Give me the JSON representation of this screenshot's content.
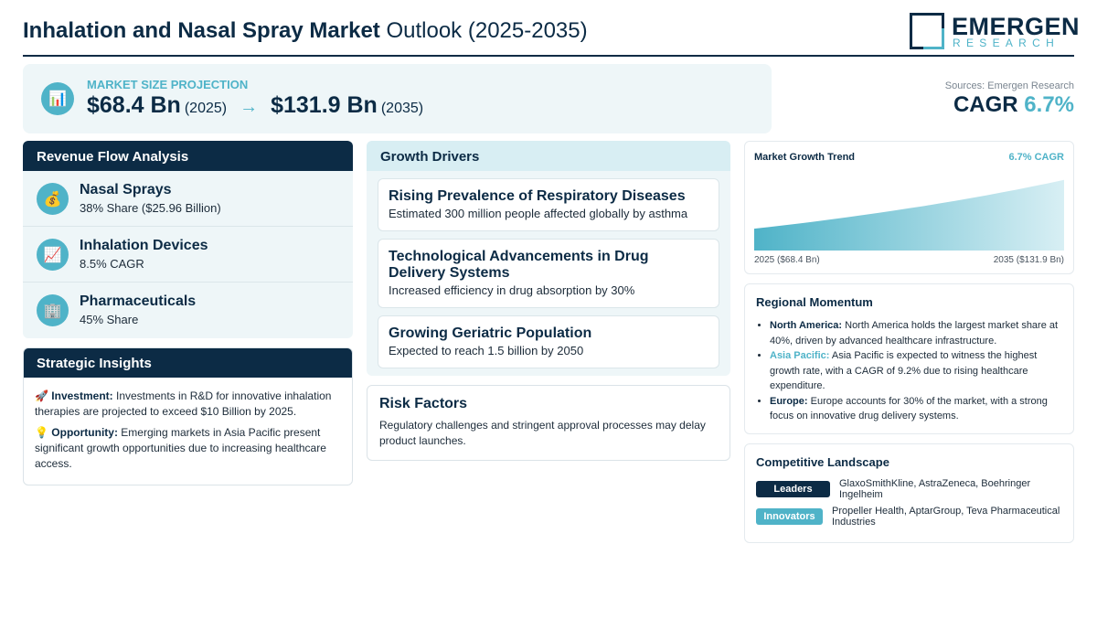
{
  "header": {
    "title_bold": "Inhalation and Nasal Spray Market",
    "title_rest": "Outlook (2025-2035)",
    "logo_main": "EMERGEN",
    "logo_sub": "RESEARCH"
  },
  "projection": {
    "label": "MARKET SIZE PROJECTION",
    "start_value": "$68.4 Bn",
    "start_year": "(2025)",
    "arrow": "→",
    "end_value": "$131.9 Bn",
    "end_year": "(2035)",
    "icon": "📊"
  },
  "summary": {
    "sources": "Sources: Emergen Research",
    "cagr_label": "CAGR",
    "cagr_value": "6.7%"
  },
  "revenue": {
    "title": "Revenue Flow Analysis",
    "items": [
      {
        "icon": "💰",
        "name": "Nasal Sprays",
        "sub": "38% Share ($25.96 Billion)"
      },
      {
        "icon": "📈",
        "name": "Inhalation Devices",
        "sub": "8.5% CAGR"
      },
      {
        "icon": "🏢",
        "name": "Pharmaceuticals",
        "sub": "45% Share"
      }
    ]
  },
  "strategic": {
    "title": "Strategic Insights",
    "investment_icon": "🚀",
    "investment_label": "Investment:",
    "investment_text": "Investments in R&D for innovative inhalation therapies are projected to exceed $10 Billion by 2025.",
    "opportunity_icon": "💡",
    "opportunity_label": "Opportunity:",
    "opportunity_text": "Emerging markets in Asia Pacific present significant growth opportunities due to increasing healthcare access."
  },
  "growth": {
    "title": "Growth Drivers",
    "drivers": [
      {
        "title": "Rising Prevalence of Respiratory Diseases",
        "text": "Estimated 300 million people affected globally by asthma"
      },
      {
        "title": "Technological Advancements in Drug Delivery Systems",
        "text": "Increased efficiency in drug absorption by 30%"
      },
      {
        "title": "Growing Geriatric Population",
        "text": "Expected to reach 1.5 billion by 2050"
      }
    ]
  },
  "risk": {
    "title": "Risk Factors",
    "text": "Regulatory challenges and stringent approval processes may delay product launches."
  },
  "trend": {
    "title": "Market Growth Trend",
    "cagr": "6.7% CAGR",
    "left_label": "2025 ($68.4 Bn)",
    "right_label": "2035 ($131.9 Bn)",
    "colors": {
      "fill_top": "#4fb3c8",
      "fill_bottom": "#d8eff4"
    }
  },
  "chart_data": {
    "type": "area",
    "title": "Market Growth Trend",
    "x": [
      2025,
      2035
    ],
    "series": [
      {
        "values": [
          68.4,
          131.9
        ]
      }
    ]
  },
  "region": {
    "title": "Regional Momentum",
    "items": [
      {
        "label": "North America:",
        "text": "North America holds the largest market share at 40%, driven by advanced healthcare infrastructure."
      },
      {
        "label": "Asia Pacific:",
        "text": "Asia Pacific is expected to witness the highest growth rate, with a CAGR of 9.2% due to rising healthcare expenditure."
      },
      {
        "label": "Europe:",
        "text": "Europe accounts for 30% of the market, with a strong focus on innovative drug delivery systems."
      }
    ]
  },
  "competitive": {
    "title": "Competitive Landscape",
    "leaders_label": "Leaders",
    "leaders_text": "GlaxoSmithKline, AstraZeneca, Boehringer Ingelheim",
    "innovators_label": "Innovators",
    "innovators_text": "Propeller Health, AptarGroup, Teva Pharmaceutical Industries"
  }
}
